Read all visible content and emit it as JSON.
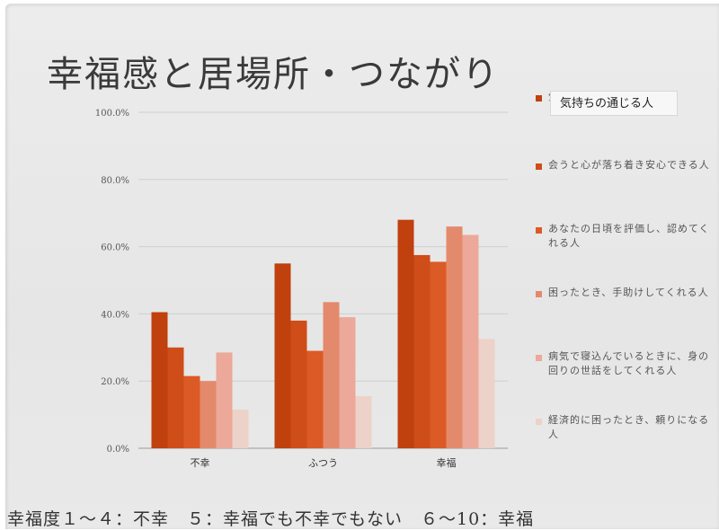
{
  "slide": {
    "title": "幸福感と居場所・つながり",
    "footer": "幸福度１～４：不幸　５：幸福でも不幸でもない　６～10：幸福",
    "tooltip": "気持ちの通じる人"
  },
  "chart_data": {
    "type": "bar",
    "categories": [
      "不幸",
      "ふつう",
      "幸福"
    ],
    "yticks": [
      "0.0%",
      "20.0%",
      "40.0%",
      "60.0%",
      "80.0%",
      "100.0%"
    ],
    "ylim": [
      0,
      100
    ],
    "grid": true,
    "legend_position": "right",
    "series": [
      {
        "name": "気持ちの通じる人",
        "color": "#c0400e",
        "values": [
          40.5,
          55,
          68
        ]
      },
      {
        "name": "会うと心が落ち着き安心できる人",
        "color": "#cf4d18",
        "values": [
          30,
          38,
          57.5
        ]
      },
      {
        "name": "あなたの日頃を評価し、認めてくれる人",
        "color": "#dc5a26",
        "values": [
          21.5,
          29,
          55.5
        ]
      },
      {
        "name": "困ったとき、手助けしてくれる人",
        "color": "#e48a6c",
        "values": [
          20,
          43.5,
          66
        ]
      },
      {
        "name": "病気で寝込んでいるときに、身の回りの世話をしてくれる人",
        "color": "#eca898",
        "values": [
          28.5,
          39,
          63.5
        ]
      },
      {
        "name": "経済的に困ったとき、頼りになる人",
        "color": "#ecd2c8",
        "values": [
          11.5,
          15.5,
          32.5
        ]
      }
    ]
  }
}
